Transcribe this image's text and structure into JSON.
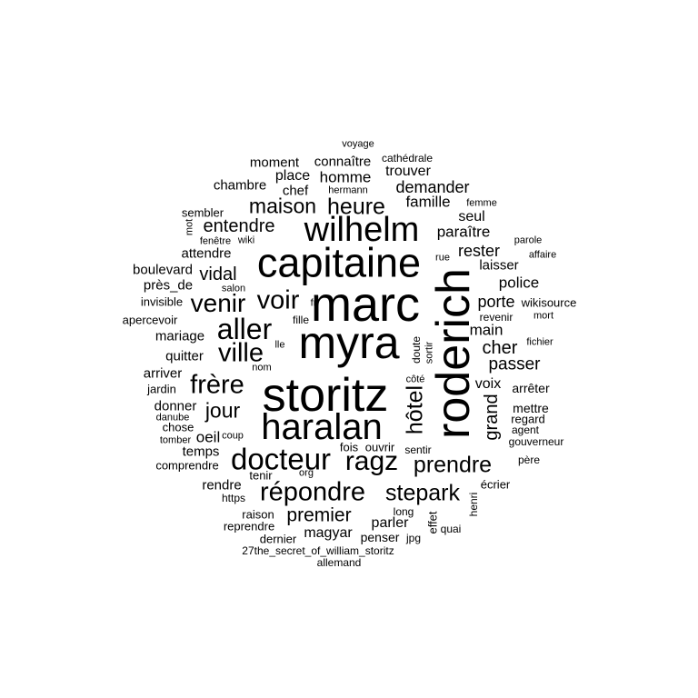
{
  "words": [
    "voyage",
    "cathédrale",
    "connaître",
    "moment",
    "place",
    "homme",
    "trouver",
    "chambre",
    "chef",
    "hermann",
    "demander",
    "sembler",
    "maison",
    "heure",
    "famille",
    "femme",
    "wilhelm",
    "seul",
    "mot",
    "entendre",
    "paraître",
    "fenêtre",
    "wiki",
    "parole",
    "capitaine",
    "rue",
    "rester",
    "affaire",
    "attendre",
    "laisser",
    "boulevard",
    "vidal",
    "roderich",
    "police",
    "près_de",
    "salon",
    "voir",
    "marc",
    "invisible",
    "venir",
    "fr",
    "porte",
    "wikisource",
    "apercevoir",
    "fille",
    "revenir",
    "mort",
    "aller",
    "main",
    "mariage",
    "myra",
    "lle",
    "doute",
    "sortir",
    "fichier",
    "cher",
    "quitter",
    "ville",
    "passer",
    "arriver",
    "nom",
    "frère",
    "voix",
    "jardin",
    "storitz",
    "côté",
    "arrêter",
    "hôtel",
    "regard",
    "donner",
    "jour",
    "mettre",
    "danube",
    "grand",
    "chose",
    "oeil",
    "agent",
    "haralan",
    "coup",
    "tomber",
    "gouverneur",
    "fois",
    "ouvrir",
    "temps",
    "sentir",
    "docteur",
    "ragz",
    "père",
    "comprendre",
    "prendre",
    "tenir",
    "org",
    "rendre",
    "écrier",
    "répondre",
    "stepark",
    "henri",
    "https",
    "raison",
    "premier",
    "long",
    "effet",
    "reprendre",
    "parler",
    "magyar",
    "quai",
    "dernier",
    "penser",
    "jpg",
    "27the_secret_of_william_storitz",
    "allemand"
  ]
}
